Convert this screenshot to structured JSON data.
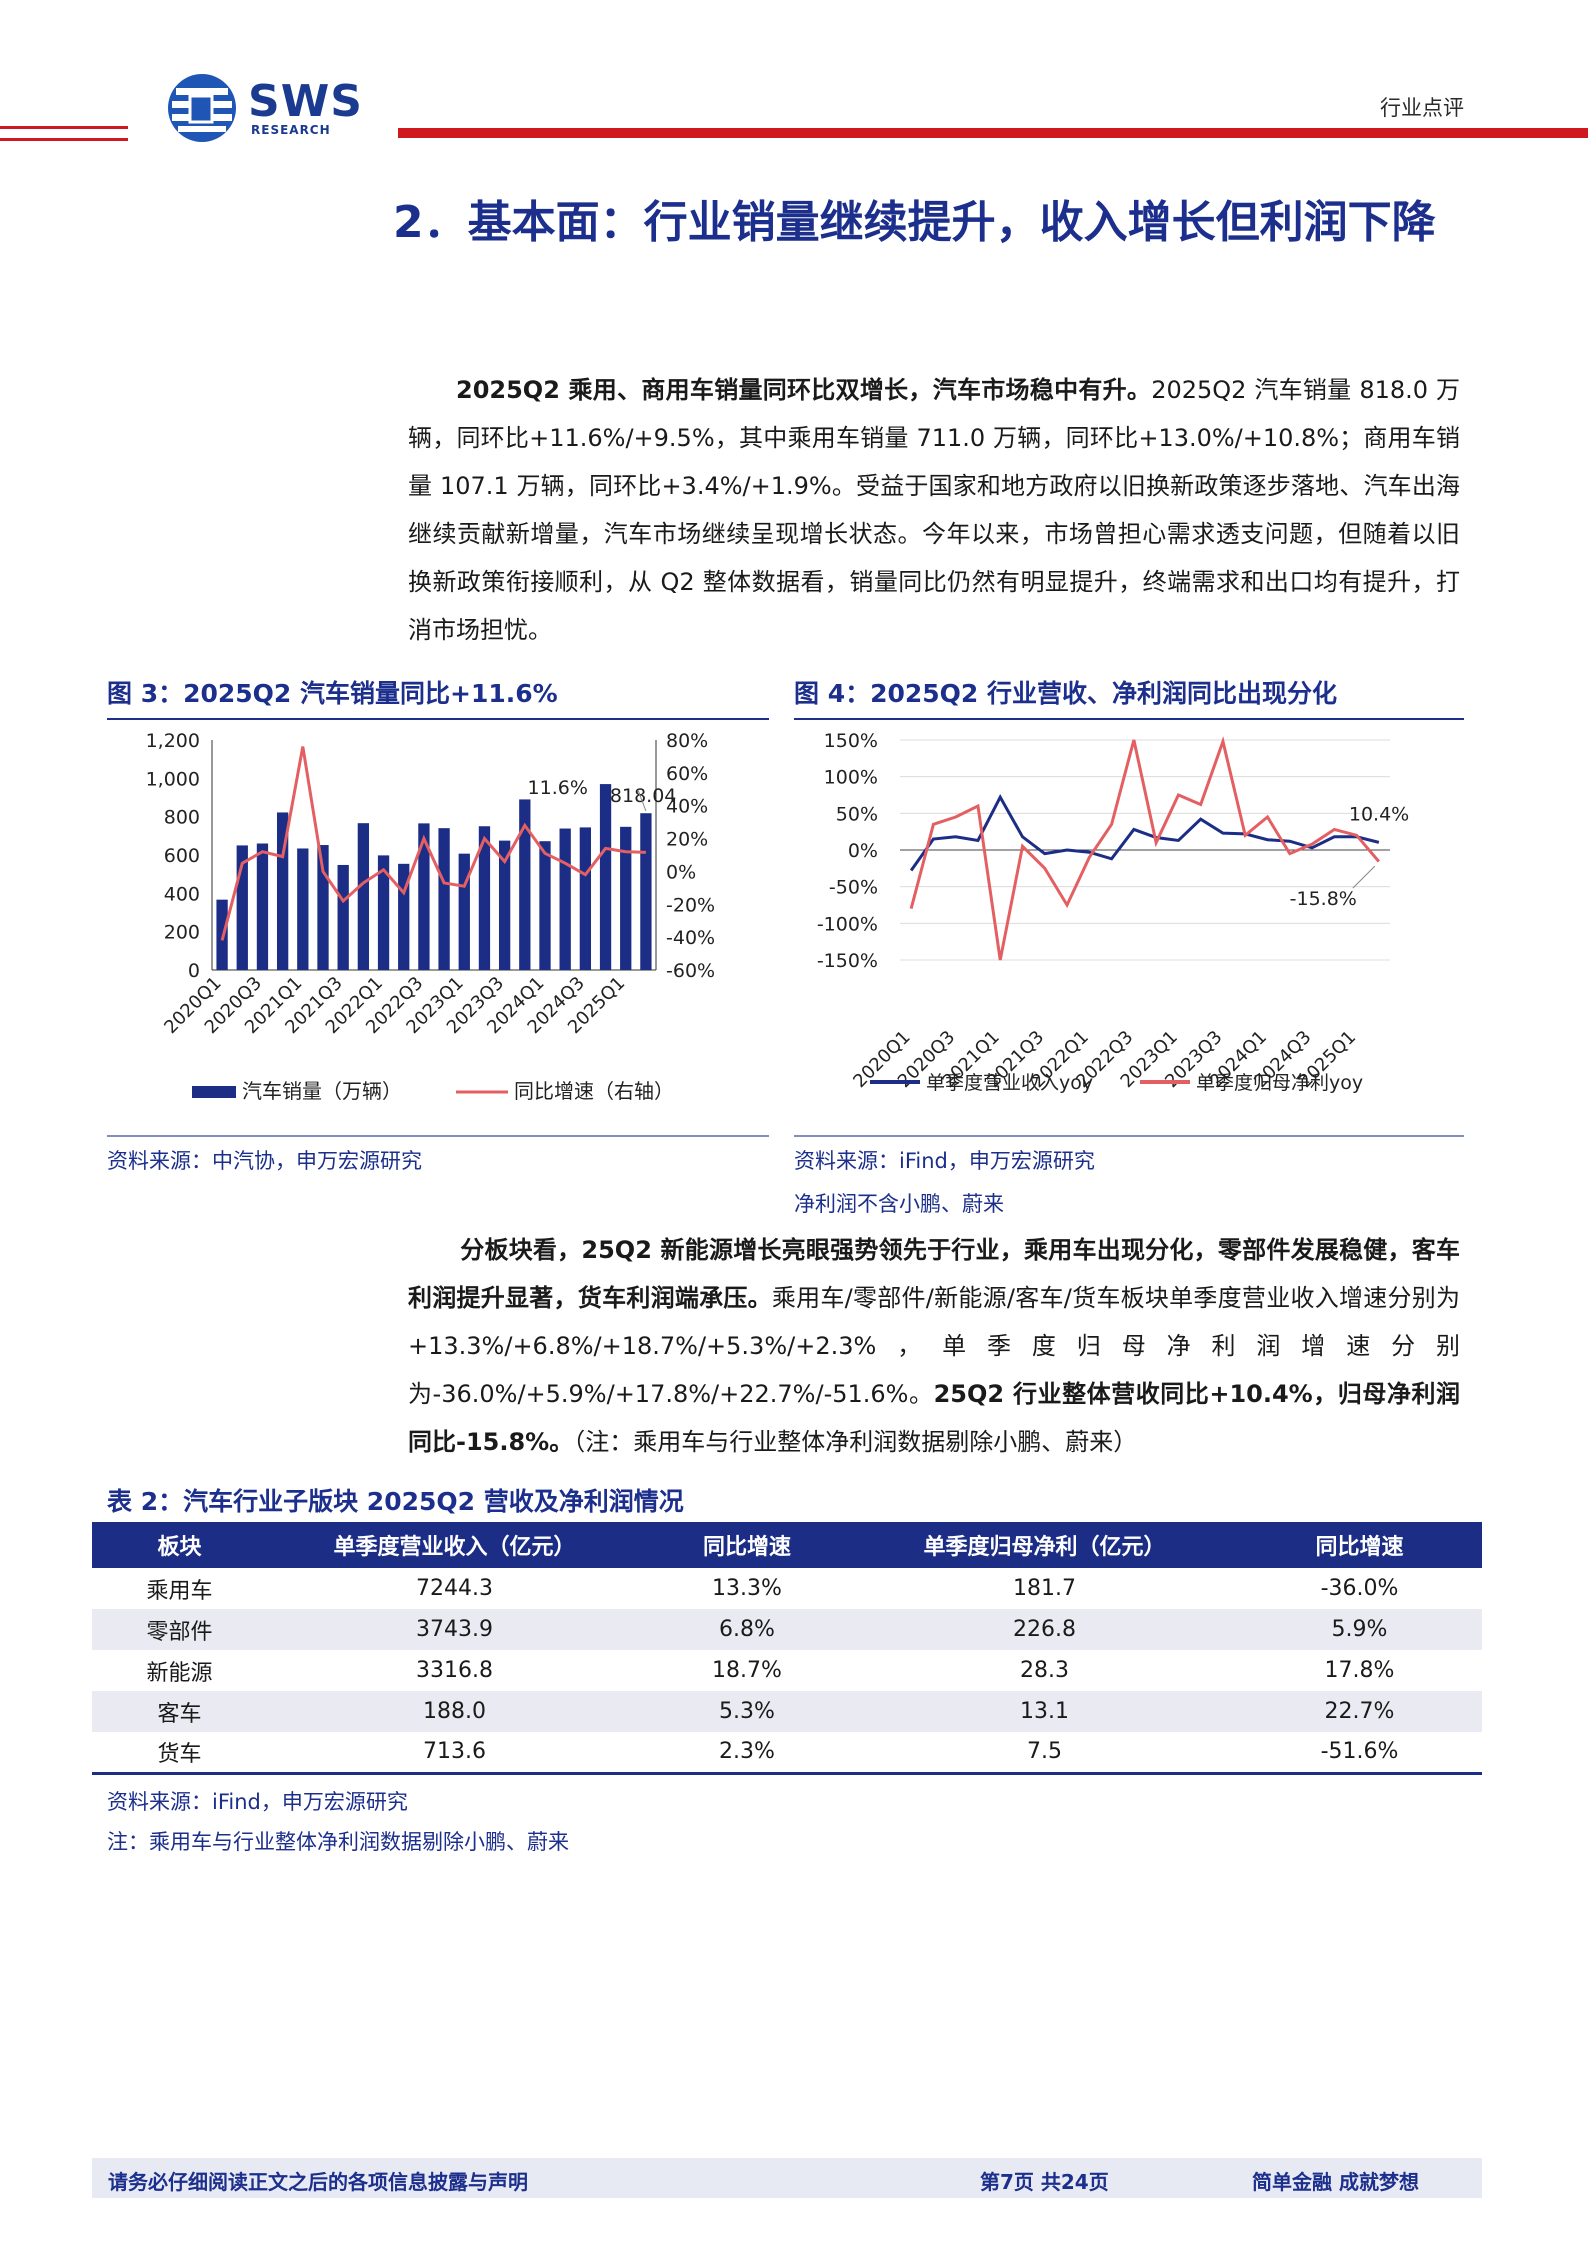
{
  "header": {
    "logo_text": "SWS",
    "logo_sub": "RESEARCH",
    "tag": "行业点评",
    "brand_color": "#1c2f8c",
    "accent_color": "#d0181f"
  },
  "section_title": "2．基本面：行业销量继续提升，收入增长但利润下降",
  "para1": {
    "bold": "2025Q2 乘用、商用车销量同环比双增长，汽车市场稳中有升。",
    "text": "2025Q2 汽车销量 818.0 万辆，同环比+11.6%/+9.5%，其中乘用车销量 711.0 万辆，同环比+13.0%/+10.8%；商用车销量 107.1 万辆，同环比+3.4%/+1.9%。受益于国家和地方政府以旧换新政策逐步落地、汽车出海继续贡献新增量，汽车市场继续呈现增长状态。今年以来，市场曾担心需求透支问题，但随着以旧换新政策衔接顺利，从 Q2 整体数据看，销量同比仍然有明显提升，终端需求和出口均有提升，打消市场担忧。"
  },
  "fig3": {
    "caption": "图 3：2025Q2 汽车销量同比+11.6%",
    "source": "资料来源：中汽协，申万宏源研究"
  },
  "fig4": {
    "caption": "图 4：2025Q2 行业营收、净利润同比出现分化",
    "source": "资料来源：iFind，申万宏源研究",
    "note": "净利润不含小鹏、蔚来"
  },
  "chart_data": [
    {
      "type": "bar",
      "x": [
        "2020Q1",
        "2020Q2",
        "2020Q3",
        "2020Q4",
        "2021Q1",
        "2021Q2",
        "2021Q3",
        "2021Q4",
        "2022Q1",
        "2022Q2",
        "2022Q3",
        "2022Q4",
        "2023Q1",
        "2023Q2",
        "2023Q3",
        "2023Q4",
        "2024Q1",
        "2024Q2",
        "2024Q3",
        "2024Q4",
        "2025Q1",
        "2025Q2"
      ],
      "tick_labels": [
        "2020Q1",
        "2020Q3",
        "2021Q1",
        "2021Q3",
        "2022Q1",
        "2022Q3",
        "2023Q1",
        "2023Q3",
        "2024Q1",
        "2024Q3",
        "2025Q1"
      ],
      "series": [
        {
          "name": "汽车销量（万辆）",
          "axis": "left",
          "color": "#1c2d86",
          "values": [
            367,
            650,
            660,
            822,
            634,
            652,
            548,
            766,
            598,
            554,
            765,
            740,
            607,
            750,
            675,
            890,
            672,
            738,
            744,
            970,
            747,
            818
          ]
        },
        {
          "name": "同比增速（右轴）",
          "axis": "right",
          "color": "#e35f62",
          "values": [
            -42,
            5,
            12,
            9,
            76,
            0,
            -18,
            -7,
            1,
            -13,
            20,
            -7,
            -9,
            20,
            6,
            28,
            11,
            5,
            -2,
            14,
            12,
            11.6
          ]
        }
      ],
      "annotations": [
        "11.6%",
        "818.04"
      ],
      "ylim": [
        0,
        1200
      ],
      "y_ticks": [
        "0",
        "200",
        "400",
        "600",
        "800",
        "1,000",
        "1,200"
      ],
      "y2lim": [
        -60,
        80
      ],
      "y2_ticks": [
        "-60%",
        "-40%",
        "-20%",
        "0%",
        "20%",
        "40%",
        "60%",
        "80%"
      ],
      "legend": "bottom"
    },
    {
      "type": "line",
      "x": [
        "2020Q1",
        "2020Q2",
        "2020Q3",
        "2020Q4",
        "2021Q1",
        "2021Q2",
        "2021Q3",
        "2021Q4",
        "2022Q1",
        "2022Q2",
        "2022Q3",
        "2022Q4",
        "2023Q1",
        "2023Q2",
        "2023Q3",
        "2023Q4",
        "2024Q1",
        "2024Q2",
        "2024Q3",
        "2024Q4",
        "2025Q1",
        "2025Q2"
      ],
      "tick_labels": [
        "2020Q1",
        "2020Q3",
        "2021Q1",
        "2021Q3",
        "2022Q1",
        "2022Q3",
        "2023Q1",
        "2023Q3",
        "2024Q1",
        "2024Q3",
        "2025Q1"
      ],
      "series": [
        {
          "name": "单季度营业收入yoy",
          "color": "#1c2d86",
          "values": [
            -28,
            15,
            18,
            13,
            72,
            18,
            -5,
            0,
            -3,
            -12,
            28,
            17,
            13,
            42,
            23,
            22,
            14,
            12,
            3,
            18,
            18,
            10.4
          ]
        },
        {
          "name": "单季度归母净利yoy",
          "color": "#e35f62",
          "values": [
            -80,
            35,
            45,
            60,
            -150,
            5,
            -25,
            -75,
            -10,
            35,
            150,
            10,
            75,
            62,
            148,
            20,
            45,
            -5,
            8,
            28,
            20,
            -15.8
          ]
        }
      ],
      "annotations": [
        "10.4%",
        "-15.8%"
      ],
      "ylim": [
        -150,
        150
      ],
      "y_ticks": [
        "-150%",
        "-100%",
        "-50%",
        "0%",
        "50%",
        "100%",
        "150%"
      ],
      "legend": "bottom"
    }
  ],
  "para2": {
    "bold1": "分板块看，25Q2 新能源增长亮眼强势领先于行业，乘用车出现分化，零部件发展稳健，客车利润提升显著，货车利润端承压。",
    "text1": "乘用车/零部件/新能源/客车/货车板块单季度营业收入增速分别为+13.3%/+6.8%/+18.7%/+5.3%/+2.3%，单季度归母净利润增速分别为-36.0%/+5.9%/+17.8%/+22.7%/-51.6%。",
    "bold2": "25Q2 行业整体营收同比+10.4%，归母净利润同比-15.8%。",
    "text2": "（注：乘用车与行业整体净利润数据剔除小鹏、蔚来）"
  },
  "table": {
    "caption": "表 2：汽车行业子版块 2025Q2 营收及净利润情况",
    "headers": [
      "板块",
      "单季度营业收入（亿元）",
      "同比增速",
      "单季度归母净利（亿元）",
      "同比增速"
    ],
    "rows": [
      [
        "乘用车",
        "7244.3",
        "13.3%",
        "181.7",
        "-36.0%"
      ],
      [
        "零部件",
        "3743.9",
        "6.8%",
        "226.8",
        "5.9%"
      ],
      [
        "新能源",
        "3316.8",
        "18.7%",
        "28.3",
        "17.8%"
      ],
      [
        "客车",
        "188.0",
        "5.3%",
        "13.1",
        "22.7%"
      ],
      [
        "货车",
        "713.6",
        "2.3%",
        "7.5",
        "-51.6%"
      ]
    ],
    "source": "资料来源：iFind，申万宏源研究",
    "note": "注：乘用车与行业整体净利润数据剔除小鹏、蔚来"
  },
  "footer": {
    "left": "请务必仔细阅读正文之后的各项信息披露与声明",
    "page": "第7页 共24页",
    "slogan": "简单金融 成就梦想"
  }
}
